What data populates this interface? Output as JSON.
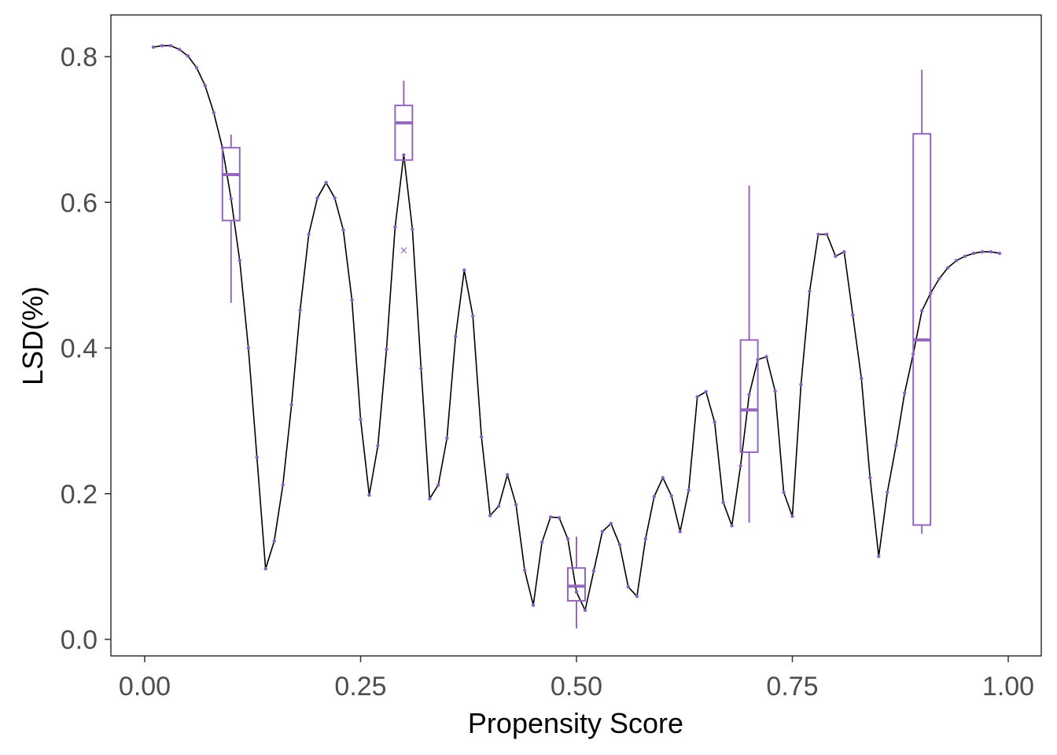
{
  "chart_data": {
    "type": "line",
    "xlabel": "Propensity Score",
    "ylabel": "LSD(%)",
    "xlim": [
      0.0,
      1.0
    ],
    "ylim": [
      0.0,
      0.8
    ],
    "x_ticks": [
      {
        "value": 0.0,
        "label": "0.00"
      },
      {
        "value": 0.25,
        "label": "0.25"
      },
      {
        "value": 0.5,
        "label": "0.50"
      },
      {
        "value": 0.75,
        "label": "0.75"
      },
      {
        "value": 1.0,
        "label": "1.00"
      }
    ],
    "y_ticks": [
      {
        "value": 0.0,
        "label": "0.0"
      },
      {
        "value": 0.2,
        "label": "0.2"
      },
      {
        "value": 0.4,
        "label": "0.4"
      },
      {
        "value": 0.6,
        "label": "0.6"
      },
      {
        "value": 0.8,
        "label": "0.8"
      }
    ],
    "grid": false,
    "colors": {
      "line": "#000000",
      "points": "#8b5fbf",
      "boxplot": "#9467bd",
      "axis": "#333333"
    },
    "series": [
      {
        "x": [
          0.01,
          0.02,
          0.03,
          0.04,
          0.05,
          0.06,
          0.07,
          0.08,
          0.09,
          0.1,
          0.11,
          0.12,
          0.13,
          0.14,
          0.15,
          0.16,
          0.17,
          0.18,
          0.19,
          0.2,
          0.21,
          0.22,
          0.23,
          0.24,
          0.25,
          0.26,
          0.27,
          0.28,
          0.29,
          0.3,
          0.31,
          0.32,
          0.33,
          0.34,
          0.35,
          0.36,
          0.37,
          0.38,
          0.39,
          0.4,
          0.41,
          0.42,
          0.43,
          0.44,
          0.45,
          0.46,
          0.47,
          0.48,
          0.49,
          0.5,
          0.51,
          0.52,
          0.53,
          0.54,
          0.55,
          0.56,
          0.57,
          0.58,
          0.59,
          0.6,
          0.61,
          0.62,
          0.63,
          0.64,
          0.65,
          0.66,
          0.67,
          0.68,
          0.69,
          0.7,
          0.71,
          0.72,
          0.73,
          0.74,
          0.75,
          0.76,
          0.77,
          0.78,
          0.79,
          0.8,
          0.81,
          0.82,
          0.83,
          0.84,
          0.85,
          0.86,
          0.87,
          0.88,
          0.89,
          0.9,
          0.91,
          0.92,
          0.93,
          0.94,
          0.95,
          0.96,
          0.97,
          0.98,
          0.99
        ],
        "values": [
          0.813,
          0.815,
          0.815,
          0.81,
          0.801,
          0.785,
          0.76,
          0.723,
          0.675,
          0.605,
          0.52,
          0.4,
          0.25,
          0.097,
          0.135,
          0.212,
          0.322,
          0.452,
          0.556,
          0.606,
          0.627,
          0.606,
          0.562,
          0.466,
          0.302,
          0.198,
          0.266,
          0.398,
          0.566,
          0.665,
          0.563,
          0.372,
          0.193,
          0.212,
          0.276,
          0.416,
          0.507,
          0.444,
          0.278,
          0.17,
          0.183,
          0.226,
          0.185,
          0.095,
          0.047,
          0.133,
          0.168,
          0.167,
          0.138,
          0.065,
          0.04,
          0.094,
          0.148,
          0.159,
          0.13,
          0.072,
          0.059,
          0.138,
          0.196,
          0.222,
          0.197,
          0.148,
          0.205,
          0.333,
          0.34,
          0.298,
          0.188,
          0.156,
          0.238,
          0.336,
          0.384,
          0.388,
          0.341,
          0.202,
          0.169,
          0.35,
          0.478,
          0.556,
          0.556,
          0.526,
          0.532,
          0.445,
          0.358,
          0.222,
          0.114,
          0.202,
          0.266,
          0.338,
          0.392,
          0.451,
          0.475,
          0.495,
          0.51,
          0.52,
          0.526,
          0.53,
          0.532,
          0.532,
          0.53
        ]
      }
    ],
    "boxplots": [
      {
        "x": 0.1,
        "min": 0.462,
        "q1": 0.575,
        "median": 0.638,
        "q3": 0.675,
        "max": 0.693
      },
      {
        "x": 0.3,
        "min": 0.658,
        "q1": 0.658,
        "median": 0.709,
        "q3": 0.733,
        "max": 0.767,
        "outliers": [
          0.534
        ]
      },
      {
        "x": 0.5,
        "min": 0.015,
        "q1": 0.053,
        "median": 0.073,
        "q3": 0.098,
        "max": 0.141
      },
      {
        "x": 0.7,
        "min": 0.16,
        "q1": 0.257,
        "median": 0.315,
        "q3": 0.411,
        "max": 0.623
      },
      {
        "x": 0.9,
        "min": 0.145,
        "q1": 0.157,
        "median": 0.411,
        "q3": 0.694,
        "max": 0.782
      }
    ]
  }
}
